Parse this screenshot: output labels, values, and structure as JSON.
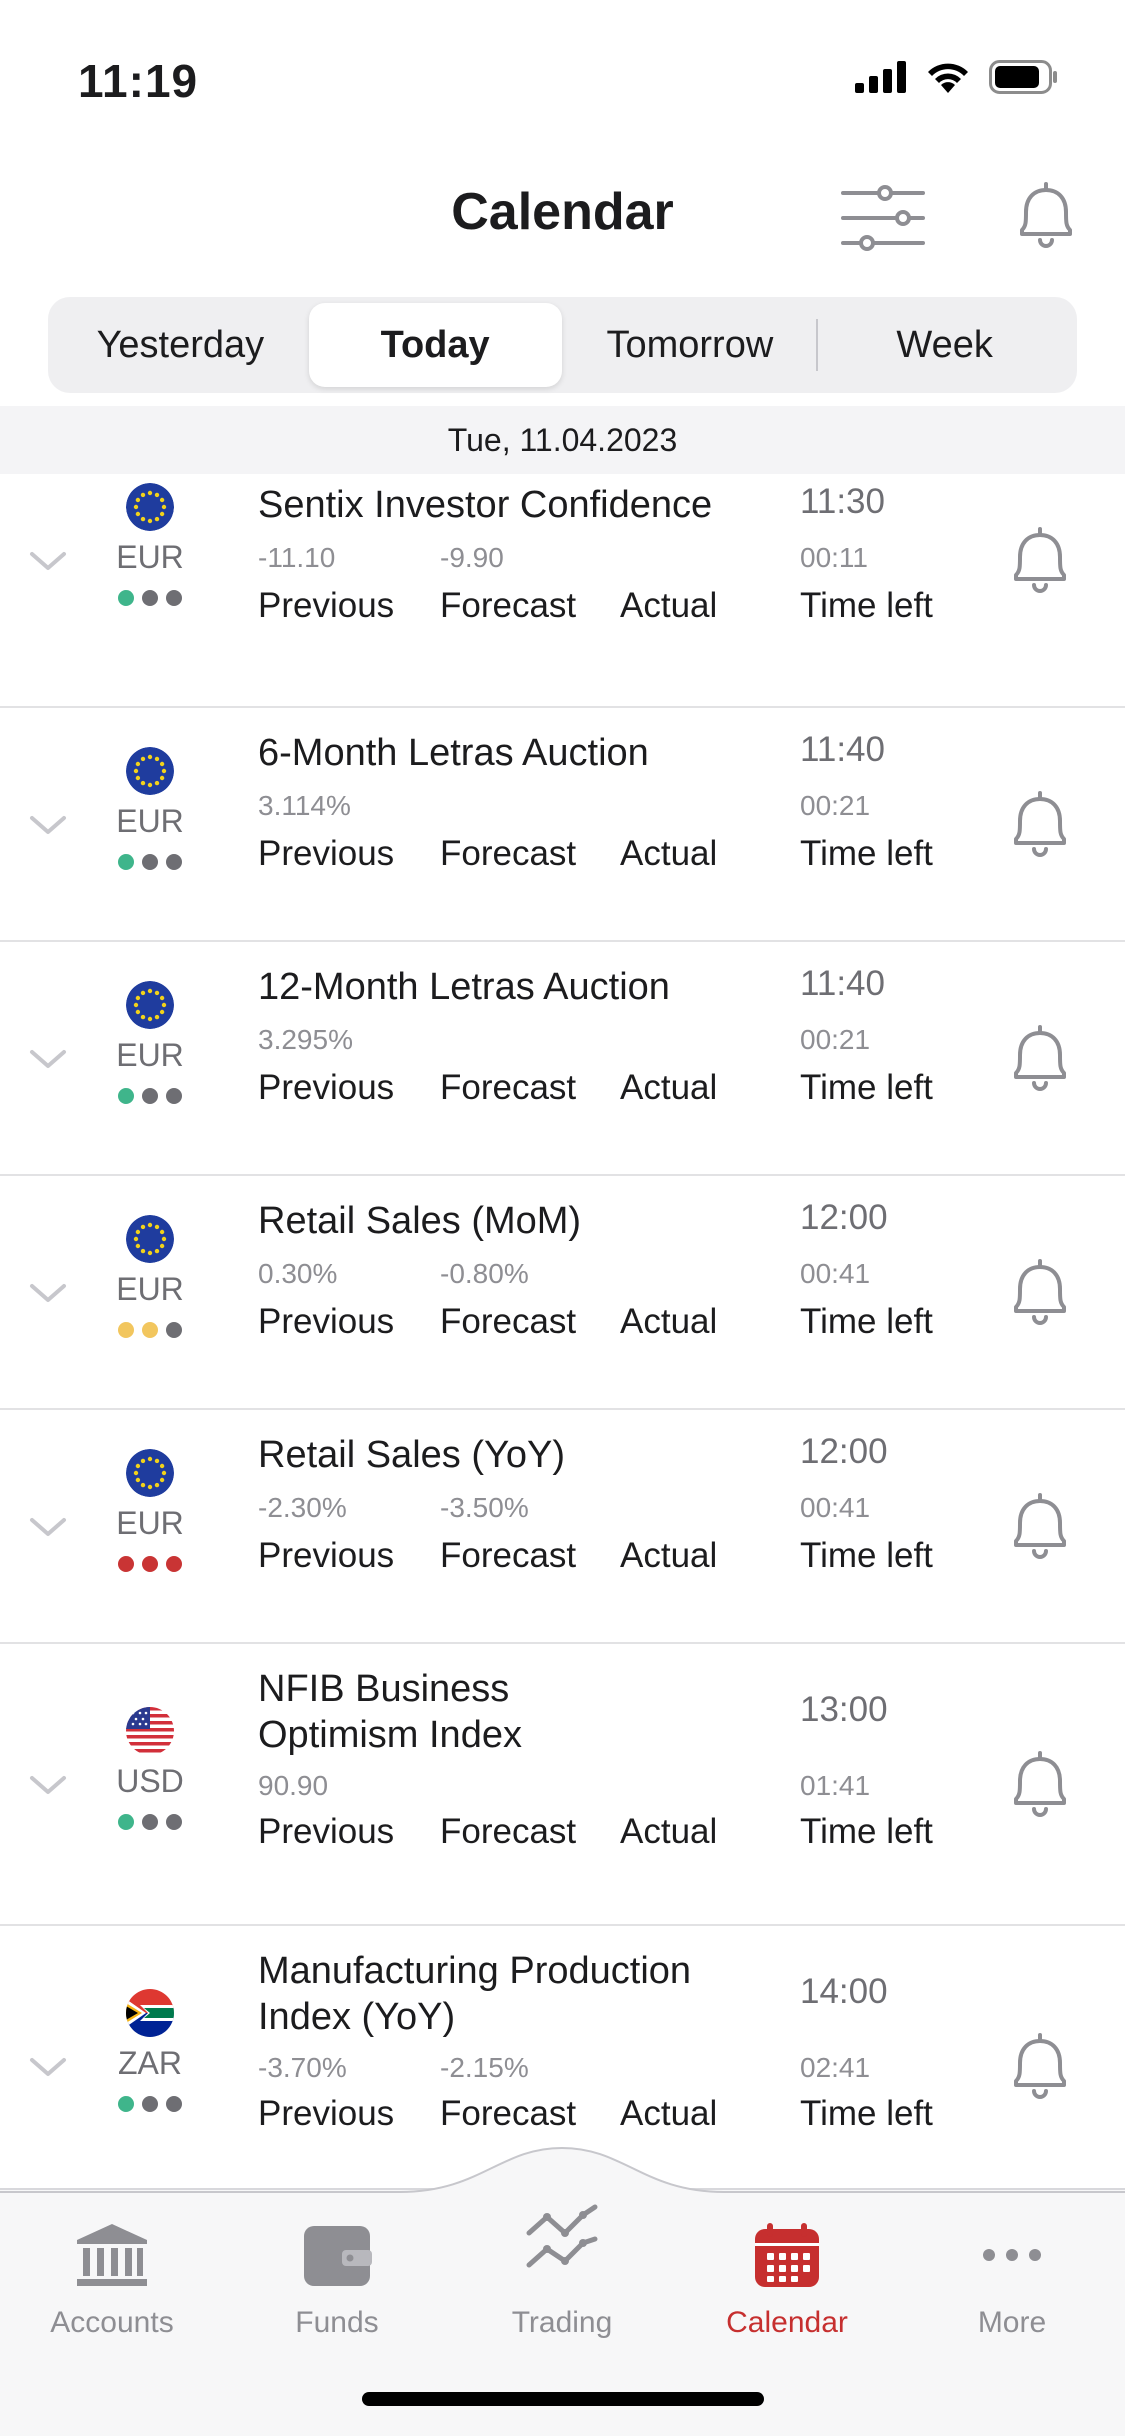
{
  "status_bar": {
    "time": "11:19"
  },
  "header": {
    "title": "Calendar"
  },
  "segments": [
    {
      "label": "Yesterday",
      "active": false
    },
    {
      "label": "Today",
      "active": true
    },
    {
      "label": "Tomorrow",
      "active": false
    },
    {
      "label": "Week",
      "active": false
    }
  ],
  "date_header": "Tue, 11.04.2023",
  "labels": {
    "previous": "Previous",
    "forecast": "Forecast",
    "actual": "Actual",
    "time_left": "Time left"
  },
  "events": [
    {
      "currency": "EUR",
      "flag": "eu",
      "dots": [
        "#3fb58b",
        "#6e6e73",
        "#6e6e73"
      ],
      "title_lines": [
        "Sentix Investor Confidence"
      ],
      "previous": "-11.10",
      "forecast": "-9.90",
      "time": "11:30",
      "time_left": "00:11"
    },
    {
      "currency": "EUR",
      "flag": "eu",
      "dots": [
        "#3fb58b",
        "#6e6e73",
        "#6e6e73"
      ],
      "title_lines": [
        "6-Month Letras Auction"
      ],
      "previous": "3.114%",
      "forecast": "",
      "time": "11:40",
      "time_left": "00:21"
    },
    {
      "currency": "EUR",
      "flag": "eu",
      "dots": [
        "#3fb58b",
        "#6e6e73",
        "#6e6e73"
      ],
      "title_lines": [
        "12-Month Letras Auction"
      ],
      "previous": "3.295%",
      "forecast": "",
      "time": "11:40",
      "time_left": "00:21"
    },
    {
      "currency": "EUR",
      "flag": "eu",
      "dots": [
        "#f2c65e",
        "#f2c65e",
        "#6e6e73"
      ],
      "title_lines": [
        "Retail Sales (MoM)"
      ],
      "previous": "0.30%",
      "forecast": "-0.80%",
      "time": "12:00",
      "time_left": "00:41"
    },
    {
      "currency": "EUR",
      "flag": "eu",
      "dots": [
        "#c93434",
        "#c93434",
        "#c93434"
      ],
      "title_lines": [
        "Retail Sales (YoY)"
      ],
      "previous": "-2.30%",
      "forecast": "-3.50%",
      "time": "12:00",
      "time_left": "00:41"
    },
    {
      "currency": "USD",
      "flag": "us",
      "dots": [
        "#3fb58b",
        "#6e6e73",
        "#6e6e73"
      ],
      "title_lines": [
        "NFIB Business",
        "Optimism Index"
      ],
      "previous": "90.90",
      "forecast": "",
      "time": "13:00",
      "time_left": "01:41"
    },
    {
      "currency": "ZAR",
      "flag": "za",
      "dots": [
        "#3fb58b",
        "#6e6e73",
        "#6e6e73"
      ],
      "title_lines": [
        "Manufacturing Production",
        "Index (YoY)"
      ],
      "previous": "-3.70%",
      "forecast": "-2.15%",
      "time": "14:00",
      "time_left": "02:41"
    }
  ],
  "tabs": [
    {
      "label": "Accounts",
      "icon": "bank-icon",
      "active": false
    },
    {
      "label": "Funds",
      "icon": "wallet-icon",
      "active": false
    },
    {
      "label": "Trading",
      "icon": "chart-icon",
      "active": false
    },
    {
      "label": "Calendar",
      "icon": "calendar-icon",
      "active": true
    },
    {
      "label": "More",
      "icon": "more-icon",
      "active": false
    }
  ],
  "colors": {
    "accent": "#c62f2f",
    "eu_blue": "#1f3c9e",
    "eu_star": "#f2d21b"
  }
}
